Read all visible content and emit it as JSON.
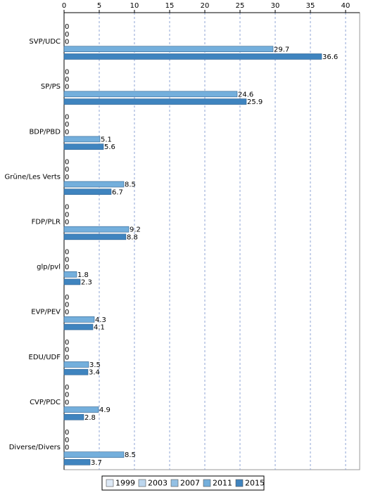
{
  "chart_data": {
    "type": "bar",
    "orientation": "horizontal",
    "categories": [
      "SVP/UDC",
      "SP/PS",
      "BDP/PBD",
      "Grüne/Les Verts",
      "FDP/PLR",
      "glp/pvl",
      "EVP/PEV",
      "EDU/UDF",
      "CVP/PDC",
      "Diverse/Divers"
    ],
    "series": [
      {
        "name": "1999",
        "color": "#dde9f6",
        "values": [
          0,
          0,
          0,
          0,
          0,
          0,
          0,
          0,
          0,
          0
        ]
      },
      {
        "name": "2003",
        "color": "#bcd6ee",
        "values": [
          0,
          0,
          0,
          0,
          0,
          0,
          0,
          0,
          0,
          0
        ]
      },
      {
        "name": "2007",
        "color": "#93c0e4",
        "values": [
          0,
          0,
          0,
          0,
          0,
          0,
          0,
          0,
          0,
          0
        ]
      },
      {
        "name": "2011",
        "color": "#74afdc",
        "values": [
          29.7,
          24.6,
          5.1,
          8.5,
          9.2,
          1.8,
          4.3,
          3.5,
          4.9,
          8.5
        ]
      },
      {
        "name": "2015",
        "color": "#3f84bf",
        "values": [
          36.6,
          25.9,
          5.6,
          6.7,
          8.8,
          2.3,
          4.1,
          3.4,
          2.8,
          3.7
        ]
      }
    ],
    "xlim": [
      0,
      42
    ],
    "xticks": [
      0,
      5,
      10,
      15,
      20,
      25,
      30,
      35,
      40
    ],
    "grid": true,
    "legend": "bottom"
  }
}
